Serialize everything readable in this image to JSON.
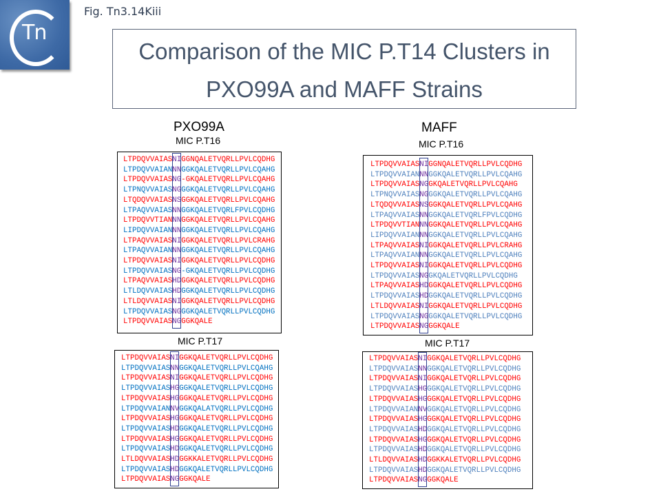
{
  "figure_label": "Fig. Tn3.14Kiii",
  "logo_text": "Tn",
  "title_lines": [
    "Comparison of the MIC P.T14 Clusters in",
    "PXO99A and MAFF Strains"
  ],
  "colors": {
    "red": "#ff0000",
    "blue_pxo": "#0070c0",
    "blue_maff": "#4f81bd",
    "rvd": "#7030a0"
  },
  "strains": [
    {
      "name": "PXO99A",
      "clusters": [
        {
          "label": "MIC P.T16",
          "rows": [
            [
              "LTPDQVVAIAS",
              "NI",
              "GGNQALETVQRLLPVLCQDHG"
            ],
            [
              "LTPDQVVAIAN",
              "NN",
              "GGKQALETVQRLLPVLCQAHG"
            ],
            [
              "LTPDQVVAIAS",
              "NG",
              "-GKQALETVQRLLPVLCQAHG"
            ],
            [
              "LTPNQVVAIAS",
              "NG",
              "GGKQALETVQRLLPVLCQAHG"
            ],
            [
              "LTQDQVVAIAS",
              "NS",
              "GGKQALETVQRLLPVLCQAHG"
            ],
            [
              "LTPAQVVAIAS",
              "NN",
              "GGKQALETVQRLFPVLCQDHG"
            ],
            [
              "LTPDQVVTIAN",
              "NN",
              "GGKQALETVQRLLPVLCQAHG"
            ],
            [
              "LIPDQVVAIAN",
              "NN",
              "GGKQALETVQRLLPVLCQAHG"
            ],
            [
              "LTPAQVVAIAS",
              "NI",
              "GGKQALETVQRLLPVLCRAHG"
            ],
            [
              "LTPAQVVAIAN",
              "NN",
              "GGKQALETVQRLLPVLCQAHG"
            ],
            [
              "LTPDQVVAIAS",
              "NI",
              "GGKQALETVQRLLPVLCQDHG"
            ],
            [
              "LTPDQVVAIAS",
              "NG",
              "-GKQALETVQRLLPVLCQDHG"
            ],
            [
              "LTPAQVVAIAS",
              "HD",
              "GGKQALETVQRLLPVLCQDHG"
            ],
            [
              "LTLDQVVAIAS",
              "HD",
              "GGKQALETVQRLLPVLCQDHG"
            ],
            [
              "LTLDQVVAIAS",
              "NI",
              "GGKQALETVQRLLPVLCQDHG"
            ],
            [
              "LTPDQVVAIAS",
              "NG",
              "GGKQALETVQRLLPVLCQDHG"
            ],
            [
              "LTPDQVVAIAS",
              "NG",
              "GGKQALE"
            ]
          ]
        },
        {
          "label": "MIC P.T17",
          "rows": [
            [
              "LTPDQVVAIAS",
              "NI",
              "GGKQALETVQRLLPVLCQDHG"
            ],
            [
              "LTPDQVVAIAS",
              "NN",
              "GGKQALETVQRLLPVLCQAHG"
            ],
            [
              "LTPDQVVAIAS",
              "NI",
              "GGKQALETVQRLLPVLCQDHG"
            ],
            [
              "LTPDQVVAIAS",
              "HG",
              "GGKQALETVQRLLPVLCQDHG"
            ],
            [
              "LTPDQVVAIAS",
              "HG",
              "GGKQALETVQRLLPVLCQDHG"
            ],
            [
              "LTPDQVVAIAN",
              "NV",
              "GGKQALATVQRLLPVLCQDHG"
            ],
            [
              "LTPDQVVAIAS",
              "HG",
              "GGKQALETVQRLLPVLCQDHG"
            ],
            [
              "LTPDQVVAIAS",
              "HD",
              "GGKQALETVQRLLPVLCQDHG"
            ],
            [
              "LTPDQVVAIAS",
              "HG",
              "GGKQALETVQRLLPVLCQDHG"
            ],
            [
              "LTPDQVVAIAS",
              "HD",
              "GGKQALETVQRLLPVLCQDHG"
            ],
            [
              "LTLDQVVAIAS",
              "HD",
              "GGKKALETVQRLLPVLCQDHG"
            ],
            [
              "LTPDQVVAIAS",
              "HD",
              "GGKQALETVQRLLPVLCQDHG"
            ],
            [
              "LTPDQVVAIAS",
              "NG",
              "GGKQALE"
            ]
          ]
        }
      ]
    },
    {
      "name": "MAFF",
      "clusters": [
        {
          "label": "MIC P.T16",
          "rows": [
            [
              "LTPDQVVAIAS",
              "NI",
              "GGNQALETVQRLLPVLCQDHG"
            ],
            [
              "LTPDQVVAIAN",
              "NN",
              "GGKQALETVQRLLPVLCQAHG"
            ],
            [
              "LTPDQVVAIAS",
              "NG",
              "GKQALETVQRLLPVLCQAHG"
            ],
            [
              "LTPNQVVAIAS",
              "NG",
              "GGKQALETVQRLLPVLCQAHG"
            ],
            [
              "LTQDQVVAIAS",
              "NS",
              "GGKQALETVQRLLPVLCQAHG"
            ],
            [
              "LTPAQVVAIAS",
              "NN",
              "GGKQALETVQRLFPVLCQDHG"
            ],
            [
              "LTPDQVVTIAN",
              "NN",
              "GGKQALETVQRLLPVLCQAHG"
            ],
            [
              "LIPDQVVAIAN",
              "NN",
              "GGKQALETVQRLLPVLCQAHG"
            ],
            [
              "LTPAQVVAIAS",
              "NI",
              "GGKQALETVQRLLPVLCRAHG"
            ],
            [
              "LTPAQVVAIAN",
              "NN",
              "GGKQALETVQRLLPVLCQAHG"
            ],
            [
              "LTPDQVVAIAS",
              "NI",
              "GGKQALETVQRLLPVLCQDHG"
            ],
            [
              "LTPDQVVAIAS",
              "NG",
              "GKQALETVQRLLPVLCQDHG"
            ],
            [
              "LTPAQVVAIAS",
              "HD",
              "GGKQALETVQRLLPVLCQDHG"
            ],
            [
              "LTPDQVVAIAS",
              "HD",
              "GGKQALETVQRLLPVLCQDHG"
            ],
            [
              "LTLDQVVAIAS",
              "NI",
              "GGKQALETVQRLLPVLCQDHG"
            ],
            [
              "LTPDQVVAIAS",
              "NG",
              "GGKQALETVQRLLPVLCQDHG"
            ],
            [
              "LTPDQVVAIAS",
              "NG",
              "GGKQALE"
            ]
          ]
        },
        {
          "label": "MIC P.T17",
          "rows": [
            [
              "LTPDQVVAIAS",
              "NI",
              "GGKQALETVQRLLPVLCQDHG"
            ],
            [
              "LTPDQVVAIAS",
              "NN",
              "GGKQALETVQRLLPVLCQDHG"
            ],
            [
              "LTPDQVVAIAS",
              "NI",
              "GGKQALETVQRLLPVLCQDHG"
            ],
            [
              "LTPDQVVAIAS",
              "HG",
              "GGKQALETVQRLLPVLCQDHG"
            ],
            [
              "LTPDQVVAIAS",
              "HG",
              "GGKQALETVQRLLPVLCQDHG"
            ],
            [
              "LTPDQVVAIAN",
              "NV",
              "GGKQALETVQRLLPVLCQDHG"
            ],
            [
              "LTPDQVVAIAS",
              "HG",
              "GGKQALETVQRLLPVLCQDHG"
            ],
            [
              "LTPDQVVAIAS",
              "HD",
              "GGKQALETVQRLLPVLCQDHG"
            ],
            [
              "LTPDQVVAIAS",
              "HG",
              "GGKQALETVQRLLPVLCQDHG"
            ],
            [
              "LTPDQVVAIAS",
              "HD",
              "GGKQALETVQRLLPVLCQDHG"
            ],
            [
              "LTLDQVVAIAS",
              "HD",
              "GGKKALETVQRLLPVLCQDHG"
            ],
            [
              "LTPDQVVAIAS",
              "HD",
              "GGKQALETVQRLLPVLCQDHG"
            ],
            [
              "LTPDQVVAIAS",
              "NG",
              "GGKQALE"
            ]
          ]
        }
      ]
    }
  ]
}
